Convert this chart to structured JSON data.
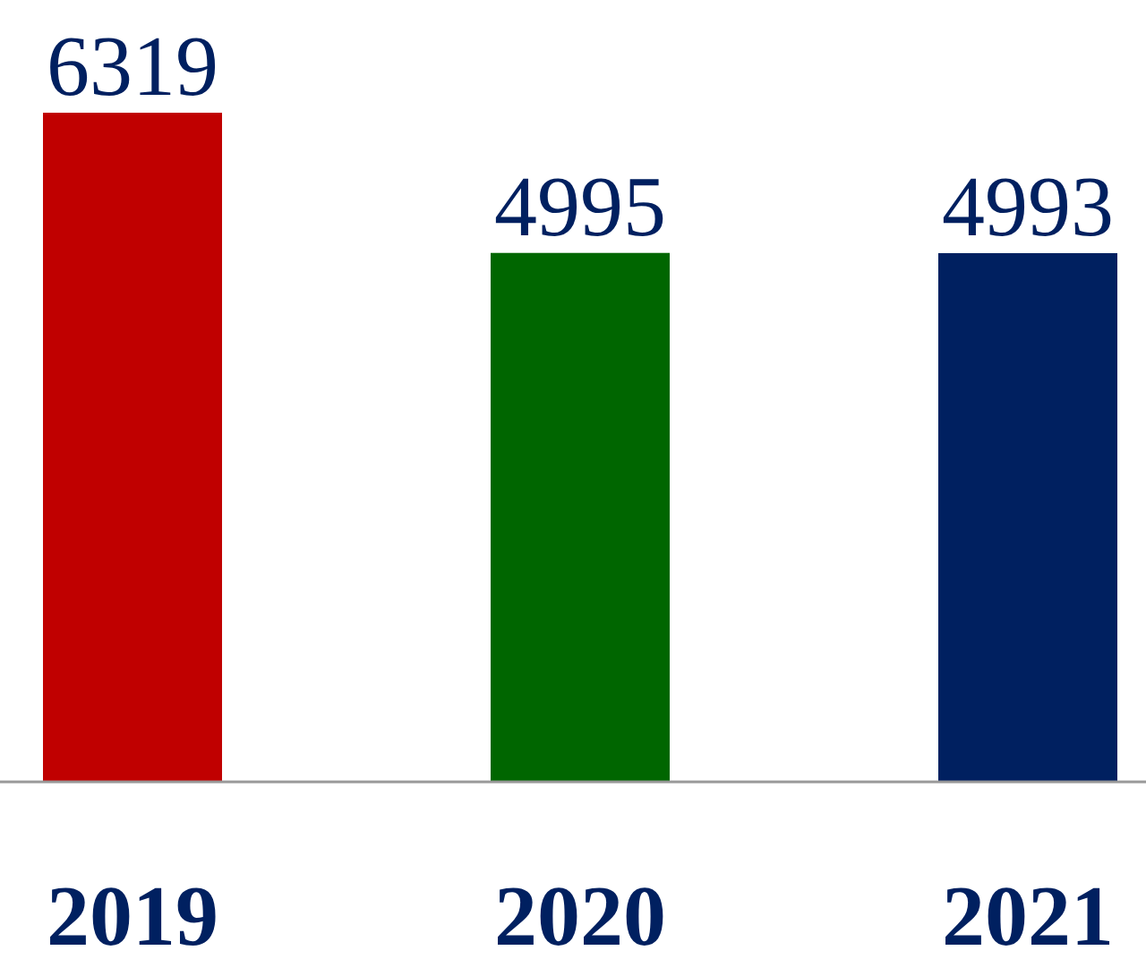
{
  "chart_data": {
    "type": "bar",
    "categories": [
      "2019",
      "2020",
      "2021"
    ],
    "values": [
      6319,
      4995,
      4993
    ],
    "colors": [
      "#c00000",
      "#006600",
      "#002060"
    ],
    "data_labels": true
  }
}
